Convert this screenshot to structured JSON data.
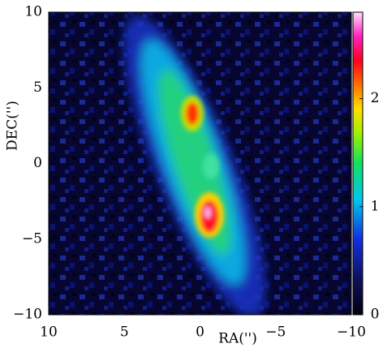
{
  "chart_data": {
    "type": "image",
    "xlabel": "RA('')",
    "ylabel": "DEC('')",
    "xlim": [
      10,
      -10
    ],
    "ylim": [
      -10,
      10
    ],
    "xticks": [
      10,
      5,
      0,
      {
        "value": -5,
        "label": "−5"
      },
      {
        "value": -10,
        "label": "−10"
      }
    ],
    "yticks": [
      {
        "value": -10,
        "label": "−10"
      },
      {
        "value": -5,
        "label": "−5"
      },
      0,
      5,
      10
    ],
    "colorbar": {
      "clim": [
        0,
        2.8
      ],
      "ticks": [
        0,
        1,
        2
      ]
    }
  }
}
